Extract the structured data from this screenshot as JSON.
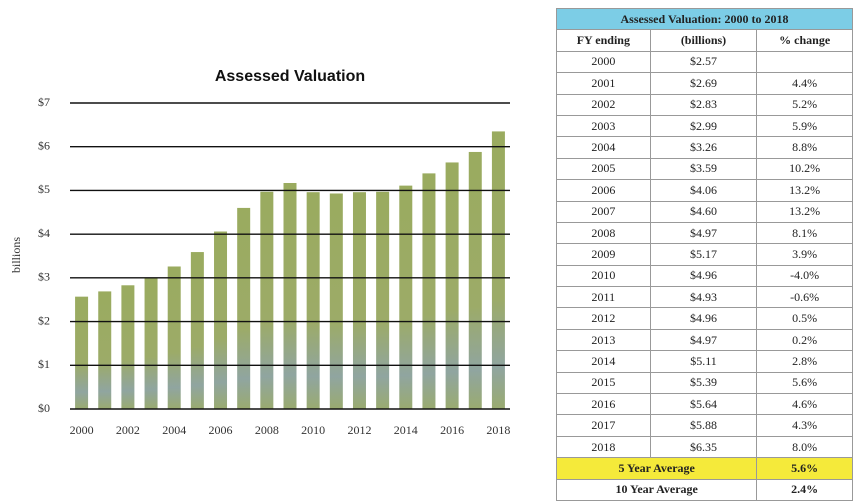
{
  "chart_data": {
    "type": "bar",
    "title": "Assessed Valuation",
    "y_label": "billions",
    "categories": [
      "2000",
      null,
      "2002",
      null,
      "2004",
      null,
      "2006",
      null,
      "2008",
      null,
      "2010",
      null,
      "2012",
      null,
      "2014",
      null,
      "2016",
      null,
      "2018"
    ],
    "values": [
      2.57,
      2.69,
      2.83,
      2.99,
      3.26,
      3.59,
      4.06,
      4.6,
      4.97,
      5.17,
      4.96,
      4.93,
      4.96,
      4.97,
      5.11,
      5.39,
      5.64,
      5.88,
      6.35
    ],
    "color": "#9aab5f",
    "ylim": [
      0,
      7
    ],
    "yticks": [
      {
        "value": 0,
        "label": "$0"
      },
      {
        "value": 1,
        "label": "$1"
      },
      {
        "value": 2,
        "label": "$2"
      },
      {
        "value": 3,
        "label": "$3"
      },
      {
        "value": 4,
        "label": "$4"
      },
      {
        "value": 5,
        "label": "$5"
      },
      {
        "value": 6,
        "label": "$6"
      },
      {
        "value": 7,
        "label": "$7"
      }
    ],
    "grid": true
  },
  "table": {
    "title": "Assessed Valuation: 2000 to 2018",
    "headers": [
      "FY ending",
      "(billions)",
      "% change"
    ],
    "rows": [
      [
        "2000",
        "$2.57"
      ],
      [
        "2001",
        "$2.69",
        "4.4%"
      ],
      [
        "2002",
        "$2.83",
        "5.2%"
      ],
      [
        "2003",
        "$2.99",
        "5.9%"
      ],
      [
        "2004",
        "$3.26",
        "8.8%"
      ],
      [
        "2005",
        "$3.59",
        "10.2%"
      ],
      [
        "2006",
        "$4.06",
        "13.2%"
      ],
      [
        "2007",
        "$4.60",
        "13.2%"
      ],
      [
        "2008",
        "$4.97",
        "8.1%"
      ],
      [
        "2009",
        "$5.17",
        "3.9%"
      ],
      [
        "2010",
        "$4.96",
        "-4.0%"
      ],
      [
        "2011",
        "$4.93",
        "-0.6%"
      ],
      [
        "2012",
        "$4.96",
        "0.5%"
      ],
      [
        "2013",
        "$4.97",
        "0.2%"
      ],
      [
        "2014",
        "$5.11",
        "2.8%"
      ],
      [
        "2015",
        "$5.39",
        "5.6%"
      ],
      [
        "2016",
        "$5.64",
        "4.6%"
      ],
      [
        "2017",
        "$5.88",
        "4.3%"
      ],
      [
        "2018",
        "$6.35",
        "8.0%"
      ]
    ],
    "averages": [
      [
        "5 Year Average",
        "5.6%"
      ],
      [
        "10 Year Average",
        "2.4%"
      ]
    ]
  }
}
